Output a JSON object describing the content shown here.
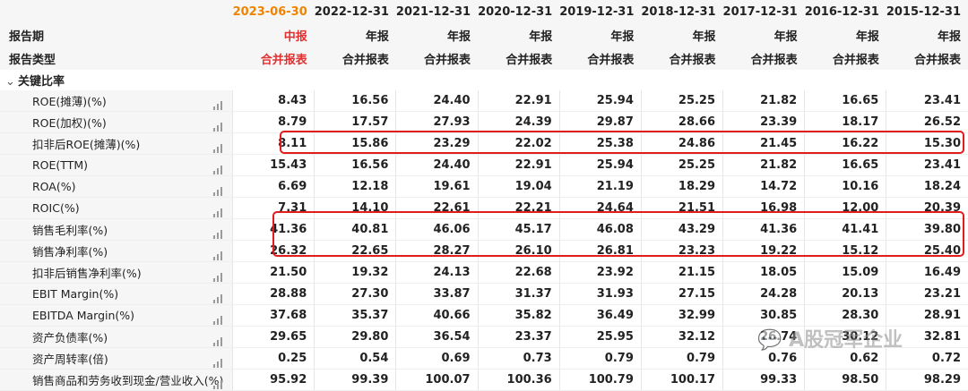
{
  "header": {
    "dates": [
      "2023-06-30",
      "2022-12-31",
      "2021-12-31",
      "2020-12-31",
      "2019-12-31",
      "2018-12-31",
      "2017-12-31",
      "2016-12-31",
      "2015-12-31"
    ],
    "period_label": "报告期",
    "type_label": "报告类型",
    "periods": [
      "中报",
      "年报",
      "年报",
      "年报",
      "年报",
      "年报",
      "年报",
      "年报",
      "年报"
    ],
    "types": [
      "合并报表",
      "合并报表",
      "合并报表",
      "合并报表",
      "合并报表",
      "合并报表",
      "合并报表",
      "合并报表",
      "合并报表"
    ]
  },
  "section_label": "关键比率",
  "rows": [
    {
      "label": "ROE(摊薄)(%)",
      "values": [
        "8.43",
        "16.56",
        "24.40",
        "22.91",
        "25.94",
        "25.25",
        "21.82",
        "16.65",
        "23.41"
      ]
    },
    {
      "label": "ROE(加权)(%)",
      "values": [
        "8.79",
        "17.57",
        "27.93",
        "24.39",
        "29.87",
        "28.66",
        "23.39",
        "18.17",
        "26.52"
      ]
    },
    {
      "label": "扣非后ROE(摊薄)(%)",
      "values": [
        "8.11",
        "15.86",
        "23.29",
        "22.02",
        "25.38",
        "24.86",
        "21.45",
        "16.22",
        "15.30"
      ]
    },
    {
      "label": "ROE(TTM)",
      "values": [
        "15.43",
        "16.56",
        "24.40",
        "22.91",
        "25.94",
        "25.25",
        "21.82",
        "16.65",
        "23.41"
      ]
    },
    {
      "label": "ROA(%)",
      "values": [
        "6.69",
        "12.18",
        "19.61",
        "19.04",
        "21.19",
        "18.29",
        "14.72",
        "10.16",
        "18.24"
      ]
    },
    {
      "label": "ROIC(%)",
      "values": [
        "7.31",
        "14.10",
        "22.61",
        "22.21",
        "24.64",
        "21.51",
        "16.98",
        "12.00",
        "20.39"
      ]
    },
    {
      "label": "销售毛利率(%)",
      "values": [
        "41.36",
        "40.81",
        "46.06",
        "45.17",
        "46.08",
        "43.29",
        "41.36",
        "41.41",
        "39.80"
      ]
    },
    {
      "label": "销售净利率(%)",
      "values": [
        "26.32",
        "22.65",
        "28.27",
        "26.10",
        "26.81",
        "23.23",
        "19.22",
        "15.12",
        "25.40"
      ]
    },
    {
      "label": "扣非后销售净利率(%)",
      "values": [
        "21.50",
        "19.32",
        "24.13",
        "22.68",
        "23.92",
        "21.15",
        "18.05",
        "15.09",
        "16.49"
      ]
    },
    {
      "label": "EBIT Margin(%)",
      "values": [
        "28.88",
        "27.30",
        "33.87",
        "31.37",
        "31.93",
        "27.15",
        "24.28",
        "20.13",
        "23.21"
      ]
    },
    {
      "label": "EBITDA Margin(%)",
      "values": [
        "37.68",
        "35.37",
        "40.66",
        "35.82",
        "36.49",
        "32.99",
        "30.85",
        "28.30",
        "28.91"
      ]
    },
    {
      "label": "资产负债率(%)",
      "values": [
        "29.65",
        "29.80",
        "36.54",
        "23.37",
        "25.95",
        "32.12",
        "26.74",
        "30.12",
        "32.81"
      ]
    },
    {
      "label": "资产周转率(倍)",
      "values": [
        "0.25",
        "0.54",
        "0.69",
        "0.73",
        "0.79",
        "0.79",
        "0.76",
        "0.62",
        "0.72"
      ]
    },
    {
      "label": "销售商品和劳务收到现金/营业收入(%)",
      "values": [
        "95.92",
        "99.39",
        "100.07",
        "100.36",
        "100.79",
        "100.17",
        "99.33",
        "98.50",
        "98.29"
      ]
    }
  ],
  "watermark": "A股冠军企业",
  "colors": {
    "accent": "#f08300",
    "highlight_box": "#e21b1b"
  }
}
